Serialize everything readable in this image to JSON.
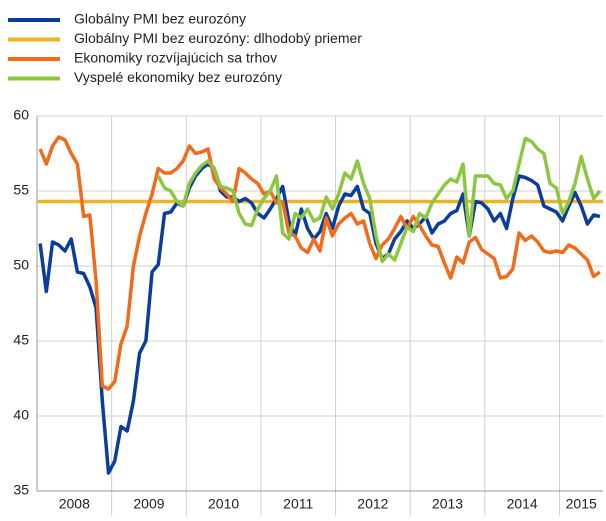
{
  "chart_data": {
    "type": "line",
    "categories": [
      "2008",
      null,
      null,
      null,
      null,
      null,
      null,
      null,
      null,
      null,
      null,
      null,
      "2009",
      null,
      null,
      null,
      null,
      null,
      null,
      null,
      null,
      null,
      null,
      null,
      "2010",
      null,
      null,
      null,
      null,
      null,
      null,
      null,
      null,
      null,
      null,
      null,
      "2011",
      null,
      null,
      null,
      null,
      null,
      null,
      null,
      null,
      null,
      null,
      null,
      "2012",
      null,
      null,
      null,
      null,
      null,
      null,
      null,
      null,
      null,
      null,
      null,
      "2013",
      null,
      null,
      null,
      null,
      null,
      null,
      null,
      null,
      null,
      null,
      null,
      "2014",
      null,
      null,
      null,
      null,
      null,
      null,
      null,
      null,
      null,
      null,
      null,
      "2015",
      null,
      null,
      null,
      null,
      null,
      null
    ],
    "ylim": [
      35,
      60
    ],
    "yticks": [
      35,
      40,
      45,
      50,
      55,
      60
    ],
    "grid": true,
    "series": [
      {
        "name": "Globálny PMI bez eurozóny",
        "color": "#0a3d9c",
        "values": [
          51.5,
          48.3,
          51.6,
          51.4,
          51.0,
          51.8,
          49.6,
          49.5,
          48.6,
          47.2,
          41.0,
          36.2,
          37.0,
          39.3,
          39.0,
          41.0,
          44.2,
          45.0,
          49.6,
          50.1,
          53.5,
          53.6,
          54.2,
          54.0,
          55.2,
          56.0,
          56.5,
          56.8,
          56.5,
          55.0,
          54.6,
          54.6,
          54.3,
          54.5,
          54.2,
          53.5,
          53.2,
          53.8,
          54.5,
          55.3,
          53.0,
          52.0,
          53.8,
          52.5,
          51.8,
          52.3,
          53.5,
          52.5,
          54.0,
          54.8,
          54.7,
          55.3,
          53.8,
          53.5,
          51.5,
          50.5,
          50.8,
          51.8,
          52.3,
          53.0,
          52.5,
          52.8,
          53.3,
          52.2,
          52.8,
          53.0,
          53.5,
          53.7,
          54.8,
          52.0,
          54.3,
          54.2,
          53.8,
          53.0,
          53.5,
          52.5,
          54.5,
          56.0,
          55.9,
          55.7,
          55.4,
          54.0,
          53.8,
          53.6,
          53.0,
          54.0,
          54.9,
          54.0,
          52.8,
          53.4,
          53.3
        ]
      },
      {
        "name": "Globálny PMI bez eurozóny: dlhodobý priemer",
        "color": "#f0b323",
        "value": 54.3
      },
      {
        "name": "Ekonomiky rozvíjajúcich sa trhov",
        "color": "#f26a1b",
        "values": [
          57.8,
          56.8,
          58.0,
          58.6,
          58.4,
          57.5,
          56.8,
          53.3,
          53.4,
          49.0,
          42.0,
          41.8,
          42.3,
          44.8,
          46.0,
          50.0,
          52.0,
          53.5,
          54.8,
          56.5,
          56.2,
          56.2,
          56.5,
          57.0,
          58.0,
          57.5,
          57.6,
          57.8,
          55.8,
          55.2,
          54.8,
          54.3,
          56.5,
          56.2,
          55.8,
          55.5,
          54.8,
          55.0,
          54.2,
          54.3,
          52.2,
          52.0,
          51.2,
          50.9,
          51.8,
          51.0,
          53.2,
          52.0,
          52.8,
          53.2,
          53.5,
          52.8,
          53.0,
          51.5,
          50.5,
          51.4,
          51.8,
          52.5,
          53.3,
          52.5,
          53.3,
          52.7,
          52.0,
          51.4,
          51.3,
          50.2,
          49.2,
          50.6,
          50.2,
          51.6,
          51.9,
          51.1,
          50.8,
          50.5,
          49.2,
          49.3,
          49.8,
          52.2,
          51.7,
          52.0,
          51.6,
          51.0,
          50.9,
          51.0,
          50.9,
          51.4,
          51.2,
          50.8,
          50.4,
          49.3,
          49.6
        ]
      },
      {
        "name": "Vyspelé ekonomiky bez eurozóny",
        "color": "#8dc63f",
        "values": [
          null,
          null,
          null,
          null,
          null,
          null,
          null,
          null,
          null,
          null,
          null,
          null,
          null,
          null,
          null,
          null,
          null,
          null,
          null,
          56.0,
          55.2,
          55.0,
          54.3,
          54.0,
          55.5,
          56.2,
          56.7,
          57.0,
          56.5,
          55.3,
          55.2,
          55.0,
          53.5,
          52.8,
          52.7,
          53.8,
          54.5,
          55.0,
          56.0,
          52.2,
          51.8,
          53.5,
          53.2,
          53.8,
          53.0,
          53.2,
          54.6,
          53.8,
          54.8,
          56.2,
          55.8,
          57.0,
          55.5,
          54.5,
          52.0,
          50.3,
          50.8,
          50.4,
          51.5,
          52.6,
          52.3,
          53.5,
          53.2,
          54.2,
          54.8,
          55.4,
          55.8,
          55.6,
          56.8,
          52.0,
          56.0,
          56.0,
          56.0,
          55.5,
          55.4,
          54.5,
          55.0,
          56.8,
          58.5,
          58.3,
          57.8,
          57.5,
          55.5,
          55.2,
          53.5,
          54.3,
          55.5,
          57.3,
          55.8,
          54.5,
          55.0
        ]
      }
    ]
  }
}
